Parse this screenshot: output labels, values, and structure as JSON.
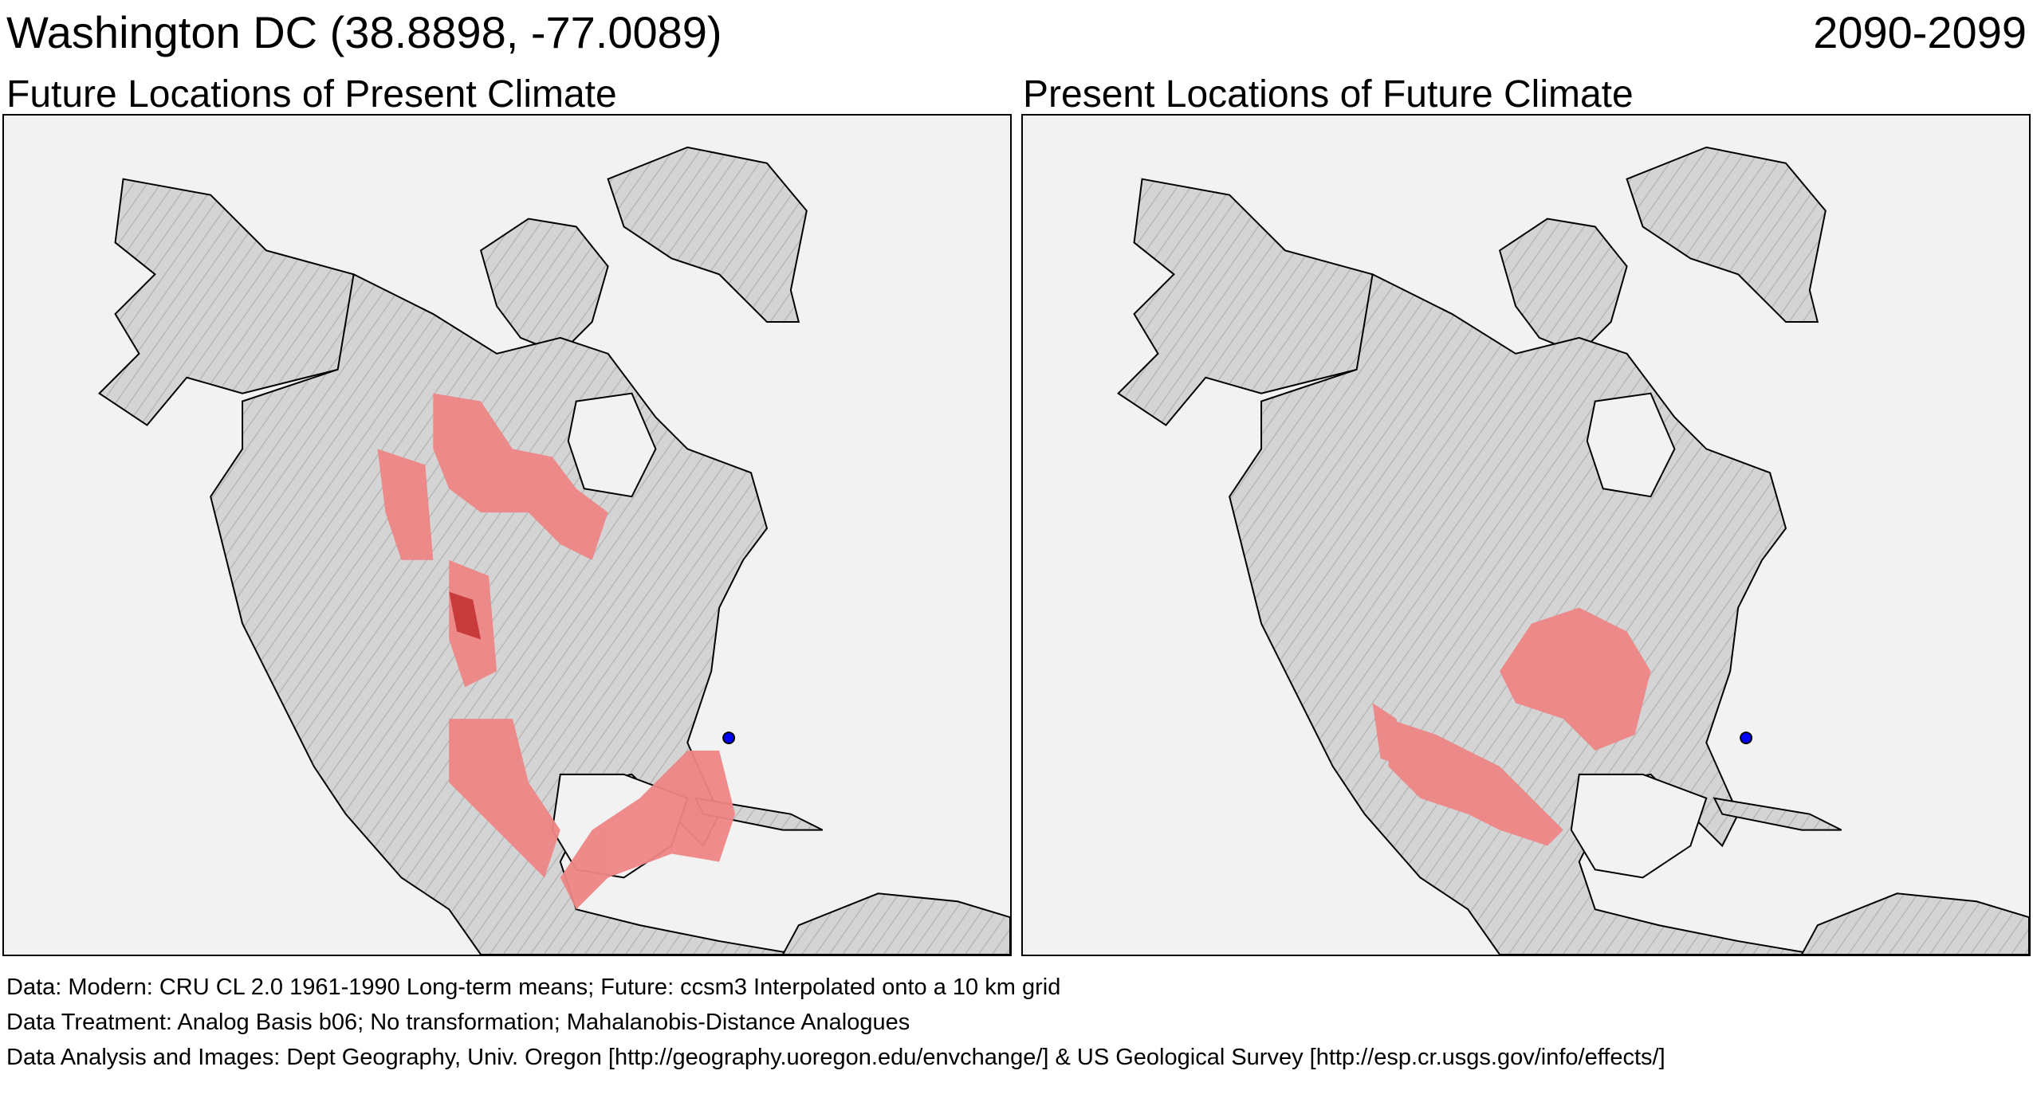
{
  "header": {
    "location": "Washington DC  (38.8898, -77.0089)",
    "period": "2090-2099"
  },
  "panels": [
    {
      "title": "Future Locations of Present Climate"
    },
    {
      "title": "Present Locations of Future Climate"
    }
  ],
  "footer": {
    "data": "Data:  Modern: CRU CL 2.0 1961-1990 Long-term means; Future: ccsm3 Interpolated onto a 10 km grid",
    "treatment": "Data Treatment:  Analog Basis b06; No transformation; Mahalanobis-Distance Analogues",
    "analysis": "Data Analysis and Images:  Dept Geography, Univ. Oregon [http://geography.uoregon.edu/envchange/] & US Geological Survey [http://esp.cr.usgs.gov/info/effects/]"
  },
  "colors": {
    "analog_region": "#ee8585",
    "analog_dense": "#c83b3b",
    "land": "#cfcfcf",
    "ocean": "#f2f2f2",
    "site_marker": "#0000ff"
  }
}
